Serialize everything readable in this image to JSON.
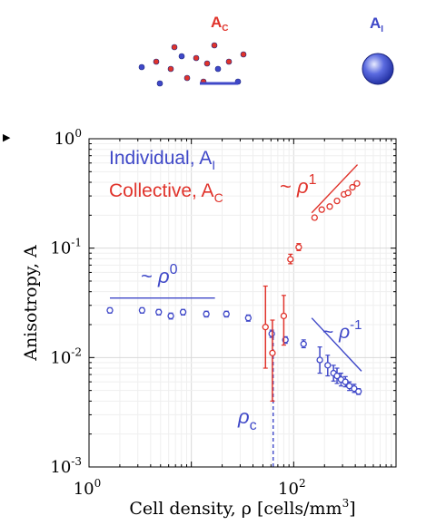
{
  "chart_data": {
    "type": "scatter",
    "xscale": "log",
    "yscale": "log",
    "xlim": [
      1,
      1000
    ],
    "ylim": [
      0.001,
      1
    ],
    "xlabel": "Cell density, ρ [cells/mm",
    "xlabel_sup": "3",
    "xlabel_end": "]",
    "ylabel": "Anisotropy, A",
    "grid": true,
    "x_ticks": [
      {
        "value": 1,
        "base": "10",
        "exp": "0"
      },
      {
        "value": 100,
        "base": "10",
        "exp": "2"
      }
    ],
    "y_ticks": [
      {
        "value": 0.001,
        "base": "10",
        "exp": "-3"
      },
      {
        "value": 0.01,
        "base": "10",
        "exp": "-2"
      },
      {
        "value": 0.1,
        "base": "10",
        "exp": "-1"
      },
      {
        "value": 1,
        "base": "10",
        "exp": "0"
      }
    ],
    "legend": {
      "placement": "top-left",
      "items": [
        {
          "label": "Individual, A",
          "sub": "I",
          "color": "#3f48c8"
        },
        {
          "label": "Collective, A",
          "sub": "C",
          "color": "#e0332b"
        }
      ]
    },
    "series": [
      {
        "name": "Individual, A_I",
        "color": "#3f48c8",
        "points": [
          {
            "x": 1.6,
            "y": 0.027,
            "lo": 0.0255,
            "hi": 0.0285
          },
          {
            "x": 3.3,
            "y": 0.027,
            "lo": 0.0255,
            "hi": 0.0285
          },
          {
            "x": 4.8,
            "y": 0.026,
            "lo": 0.0245,
            "hi": 0.0275
          },
          {
            "x": 6.3,
            "y": 0.024,
            "lo": 0.0225,
            "hi": 0.0255
          },
          {
            "x": 8.3,
            "y": 0.026,
            "lo": 0.0245,
            "hi": 0.0275
          },
          {
            "x": 14,
            "y": 0.025,
            "lo": 0.0235,
            "hi": 0.0265
          },
          {
            "x": 22,
            "y": 0.025,
            "lo": 0.0235,
            "hi": 0.0265
          },
          {
            "x": 36,
            "y": 0.023,
            "lo": 0.0215,
            "hi": 0.0245
          },
          {
            "x": 61,
            "y": 0.0165,
            "lo": 0.0153,
            "hi": 0.0178
          },
          {
            "x": 83,
            "y": 0.0145,
            "lo": 0.0135,
            "hi": 0.0155
          },
          {
            "x": 125,
            "y": 0.0133,
            "lo": 0.0123,
            "hi": 0.0145
          },
          {
            "x": 180,
            "y": 0.0095,
            "lo": 0.0072,
            "hi": 0.0125
          },
          {
            "x": 215,
            "y": 0.0085,
            "lo": 0.0068,
            "hi": 0.0105
          },
          {
            "x": 245,
            "y": 0.0072,
            "lo": 0.0061,
            "hi": 0.0085
          },
          {
            "x": 265,
            "y": 0.0068,
            "lo": 0.0058,
            "hi": 0.008
          },
          {
            "x": 290,
            "y": 0.0063,
            "lo": 0.0055,
            "hi": 0.0072
          },
          {
            "x": 320,
            "y": 0.006,
            "lo": 0.0054,
            "hi": 0.0067
          },
          {
            "x": 350,
            "y": 0.0055,
            "lo": 0.005,
            "hi": 0.006
          },
          {
            "x": 390,
            "y": 0.0052,
            "lo": 0.0048,
            "hi": 0.0057
          },
          {
            "x": 430,
            "y": 0.0049,
            "lo": 0.0046,
            "hi": 0.0052
          }
        ]
      },
      {
        "name": "Collective, A_C",
        "color": "#e0332b",
        "points": [
          {
            "x": 53,
            "y": 0.019,
            "lo": 0.008,
            "hi": 0.045
          },
          {
            "x": 62,
            "y": 0.011,
            "lo": 0.004,
            "hi": 0.022
          },
          {
            "x": 80,
            "y": 0.024,
            "lo": 0.013,
            "hi": 0.037
          },
          {
            "x": 93,
            "y": 0.079,
            "lo": 0.072,
            "hi": 0.088
          },
          {
            "x": 112,
            "y": 0.102,
            "lo": 0.095,
            "hi": 0.11
          },
          {
            "x": 160,
            "y": 0.19,
            "lo": 0.182,
            "hi": 0.198
          },
          {
            "x": 188,
            "y": 0.225,
            "lo": 0.215,
            "hi": 0.235
          },
          {
            "x": 225,
            "y": 0.24,
            "lo": 0.23,
            "hi": 0.25
          },
          {
            "x": 265,
            "y": 0.27,
            "lo": 0.26,
            "hi": 0.28
          },
          {
            "x": 310,
            "y": 0.31,
            "lo": 0.3,
            "hi": 0.32
          },
          {
            "x": 340,
            "y": 0.32,
            "lo": 0.31,
            "hi": 0.33
          },
          {
            "x": 375,
            "y": 0.36,
            "lo": 0.35,
            "hi": 0.37
          },
          {
            "x": 415,
            "y": 0.39,
            "lo": 0.38,
            "hi": 0.4
          }
        ]
      }
    ],
    "guide_lines": [
      {
        "name": "rho-0",
        "color": "#3f48c8",
        "from": [
          1.6,
          0.035
        ],
        "to": [
          17,
          0.035
        ]
      },
      {
        "name": "rho-1",
        "color": "#e0332b",
        "from": [
          150,
          0.21
        ],
        "to": [
          420,
          0.58
        ]
      },
      {
        "name": "rho-minus-1",
        "color": "#3f48c8",
        "from": [
          150,
          0.023
        ],
        "to": [
          460,
          0.0075
        ]
      },
      {
        "name": "rho-c",
        "color": "#3f48c8",
        "from": [
          63,
          0.001
        ],
        "to": [
          63,
          0.016
        ],
        "dashed": true
      }
    ],
    "annotations": [
      {
        "name": "rho-0",
        "prefix": "~",
        "base": "ρ",
        "exp": "0",
        "color": "#3f48c8"
      },
      {
        "name": "rho-1",
        "prefix": "~",
        "base": "ρ",
        "exp": "1",
        "color": "#e0332b"
      },
      {
        "name": "rho-minus-1",
        "prefix": "~",
        "base": "ρ",
        "exp": "-1",
        "color": "#3f48c8"
      },
      {
        "name": "rho-c",
        "prefix": "",
        "base": "ρ",
        "exp": "",
        "sub": "c",
        "color": "#3f48c8"
      }
    ]
  },
  "top_inset": {
    "label_left": "A",
    "label_left_sub": "C",
    "label_left_color": "#e0332b",
    "label_right": "A",
    "label_right_sub": "I",
    "label_right_color": "#3f48c8",
    "panel_marker": "▶"
  }
}
